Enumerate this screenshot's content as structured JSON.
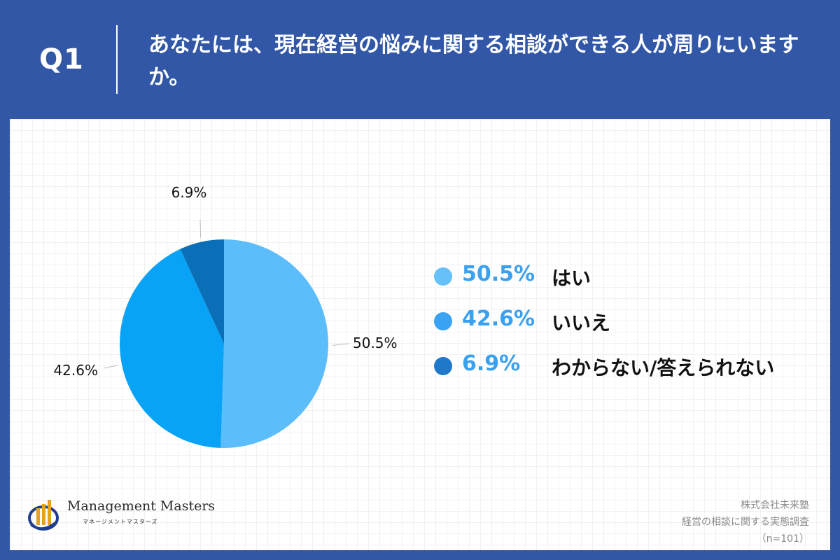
{
  "header": {
    "q_label": "Q1",
    "question": "あなたには、現在経営の悩みに関する相談ができる人が周りにいますか。"
  },
  "chart_data": {
    "type": "pie",
    "title": "",
    "slices": [
      {
        "label": "はい",
        "value": 50.5,
        "display": "50.5%",
        "color": "#5cbdfb"
      },
      {
        "label": "いいえ",
        "value": 42.6,
        "display": "42.6%",
        "color": "#08a3f6"
      },
      {
        "label": "わからない/答えられない",
        "value": 6.9,
        "display": "6.9%",
        "color": "#0a6fb6"
      }
    ],
    "legend_placement": "right"
  },
  "legend": {
    "pct_color": "#3aa0f0",
    "items": [
      {
        "pct": "50.5%",
        "label": "はい",
        "dot_color": "#66c1f8"
      },
      {
        "pct": "42.6%",
        "label": "いいえ",
        "dot_color": "#3aa3f3"
      },
      {
        "pct": "6.9%",
        "label": "わからない/答えられない",
        "dot_color": "#1f78c8"
      }
    ]
  },
  "logo": {
    "name": "Management Masters",
    "kana": "マネージメントマスターズ"
  },
  "source": {
    "company": "株式会社未来塾",
    "survey": "経営の相談に関する実態調査",
    "n": "（n=101）"
  }
}
